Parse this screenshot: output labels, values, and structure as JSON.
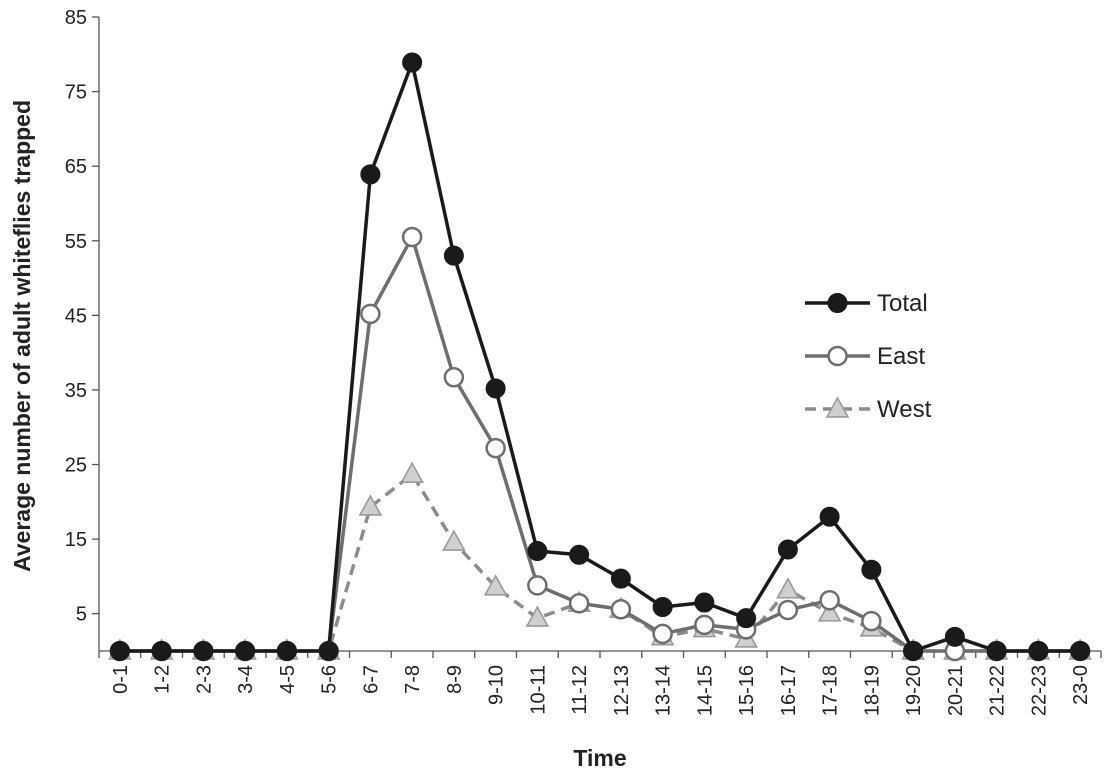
{
  "chart_data": {
    "type": "line",
    "xlabel": "Time",
    "ylabel": "Average number of adult whiteflies trapped",
    "ylim": [
      0,
      85
    ],
    "yticks": [
      5,
      15,
      25,
      35,
      45,
      55,
      65,
      75,
      85
    ],
    "grid": false,
    "legend_position": "right",
    "categories": [
      "0-1",
      "1-2",
      "2-3",
      "3-4",
      "4-5",
      "5-6",
      "6-7",
      "7-8",
      "8-9",
      "9-10",
      "10-11",
      "11-12",
      "12-13",
      "13-14",
      "14-15",
      "15-16",
      "16-17",
      "17-18",
      "18-19",
      "19-20",
      "20-21",
      "21-22",
      "22-23",
      "23-0"
    ],
    "series": [
      {
        "name": "Total",
        "color": "#1a1a1a",
        "marker": "filled-circle",
        "dash": "solid",
        "values": [
          0,
          0,
          0,
          0,
          0,
          0,
          63.9,
          78.9,
          53,
          35.2,
          13.4,
          12.9,
          9.7,
          5.9,
          6.5,
          4.4,
          13.6,
          18,
          10.9,
          0,
          1.9,
          0,
          0,
          0
        ]
      },
      {
        "name": "East",
        "color": "#6e6e6e",
        "marker": "open-circle",
        "dash": "solid",
        "values": [
          0,
          0,
          0,
          0,
          0,
          0,
          45.2,
          55.5,
          36.7,
          27.2,
          8.8,
          6.4,
          5.6,
          2.3,
          3.5,
          2.9,
          5.5,
          6.8,
          4,
          0,
          0,
          0,
          0,
          0
        ]
      },
      {
        "name": "West",
        "color": "#8c8c8c",
        "marker": "triangle",
        "dash": "dashed",
        "values": [
          0,
          0,
          0,
          0,
          0,
          0,
          19.3,
          23.7,
          14.6,
          8.6,
          4.4,
          6.4,
          5.6,
          1.9,
          3,
          1.6,
          8.2,
          5.1,
          3.1,
          0,
          0,
          0,
          0,
          0
        ]
      }
    ]
  }
}
